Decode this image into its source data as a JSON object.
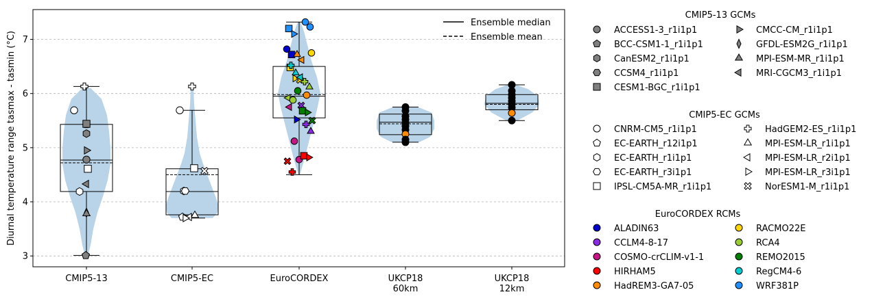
{
  "chart_data": {
    "type": "violin-box-strip",
    "ylabel": "Diurnal temperature range tasmax - tasmin (°C)",
    "ylim": [
      2.8,
      7.55
    ],
    "yticks": [
      3,
      4,
      5,
      6,
      7
    ],
    "grid": "horizontal dashed",
    "categories": [
      "CMIP5-13",
      "CMIP5-EC",
      "EuroCORDEX",
      "UKCP18\n60km",
      "UKCP18\n12km"
    ],
    "ensemble_legend": {
      "placement": "top-right inside plot",
      "median_label": "Ensemble median",
      "mean_label": "Ensemble mean"
    },
    "groups": [
      {
        "name": "CMIP5-13",
        "box": {
          "q1": 4.19,
          "median": 4.77,
          "q3": 5.43,
          "whisker_low": 3.01,
          "whisker_high": 6.13,
          "mean": 4.72
        },
        "points": [
          {
            "model": "ACCESS1-3_r1i1p1",
            "marker": "circle",
            "y": 4.78
          },
          {
            "model": "BCC-CSM1-1_r1i1p1",
            "marker": "pentagon",
            "y": 3.01
          },
          {
            "model": "CanESM2_r1i1p1",
            "marker": "hexagon",
            "y": 5.26
          },
          {
            "model": "CCSM4_r1i1p1",
            "marker": "hexagon2",
            "y": 5.43
          },
          {
            "model": "CESM1-BGC_r1i1p1",
            "marker": "square",
            "y": 5.44
          },
          {
            "model": "CMCC-CM_r1i1p1",
            "marker": "triangle-right",
            "y": 4.95
          },
          {
            "model": "GFDL-ESM2G_r1i1p1",
            "marker": "thin-diamond",
            "y": 3.8
          },
          {
            "model": "MPI-ESM-MR_r1i1p1",
            "marker": "triangle-up",
            "y": 3.78
          },
          {
            "model": "MRI-CGCM3_r1i1p1",
            "marker": "triangle-left",
            "y": 4.33
          },
          {
            "model": "CNRM-CM5_r1i1p1",
            "marker": "circle",
            "y": 5.69,
            "hollow": true
          },
          {
            "model": "IPSL-CM5A-MR_r1i1p1",
            "marker": "square",
            "y": 4.61,
            "hollow": true
          },
          {
            "model": "EC-EARTH_r1i1p1",
            "marker": "hexagon",
            "y": 4.19,
            "hollow": true
          },
          {
            "model": "HadGEM2-ES_r1i1p1",
            "marker": "plus",
            "y": 6.13,
            "hollow": true
          }
        ]
      },
      {
        "name": "CMIP5-EC",
        "box": {
          "q1": 3.76,
          "median": 4.19,
          "q3": 4.61,
          "whisker_low": 3.7,
          "whisker_high": 5.69,
          "mean": 4.5
        },
        "points": [
          {
            "model": "CNRM-CM5_r1i1p1",
            "marker": "circle",
            "y": 5.69
          },
          {
            "model": "EC-EARTH_r12i1p1",
            "marker": "pentagon",
            "y": 3.72
          },
          {
            "model": "EC-EARTH_r1i1p1",
            "marker": "hexagon",
            "y": 4.2
          },
          {
            "model": "EC-EARTH_r3i1p1",
            "marker": "hexagon2",
            "y": 4.2
          },
          {
            "model": "IPSL-CM5A-MR_r1i1p1",
            "marker": "square",
            "y": 4.62
          },
          {
            "model": "HadGEM2-ES_r1i1p1",
            "marker": "plus",
            "y": 6.13
          },
          {
            "model": "MPI-ESM-LR_r1i1p1",
            "marker": "triangle-up",
            "y": 3.75
          },
          {
            "model": "MPI-ESM-LR_r2i1p1",
            "marker": "triangle-left",
            "y": 3.72
          },
          {
            "model": "MPI-ESM-LR_r3i1p1",
            "marker": "triangle-right",
            "y": 3.7
          },
          {
            "model": "NorESM1-M_r1i1p1",
            "marker": "x",
            "y": 4.57
          }
        ]
      },
      {
        "name": "EuroCORDEX",
        "box": {
          "q1": 5.55,
          "median": 5.95,
          "q3": 6.5,
          "whisker_low": 4.5,
          "whisker_high": 7.32,
          "mean": 5.98
        },
        "points": [
          {
            "rcm": "ALADIN63",
            "y": 6.82
          },
          {
            "rcm": "ALADIN63",
            "y": 6.72
          },
          {
            "rcm": "ALADIN63",
            "y": 5.52
          },
          {
            "rcm": "CCLM4-8-17",
            "y": 5.78
          },
          {
            "rcm": "CCLM4-8-17",
            "y": 5.43
          },
          {
            "rcm": "CCLM4-8-17",
            "y": 5.3
          },
          {
            "rcm": "COSMO-crCLIM-v1-1",
            "y": 5.75
          },
          {
            "rcm": "COSMO-crCLIM-v1-1",
            "y": 5.12
          },
          {
            "rcm": "COSMO-crCLIM-v1-1",
            "y": 4.78
          },
          {
            "rcm": "HIRHAM5",
            "y": 4.85
          },
          {
            "rcm": "HIRHAM5",
            "y": 4.82
          },
          {
            "rcm": "HIRHAM5",
            "y": 4.75
          },
          {
            "rcm": "HIRHAM5",
            "y": 4.55
          },
          {
            "rcm": "HadREM3-GA7-05",
            "y": 6.72
          },
          {
            "rcm": "HadREM3-GA7-05",
            "y": 6.62
          },
          {
            "rcm": "HadREM3-GA7-05",
            "y": 5.97
          },
          {
            "rcm": "RACMO22E",
            "y": 6.75
          },
          {
            "rcm": "RACMO22E",
            "y": 6.48
          },
          {
            "rcm": "RACMO22E",
            "y": 6.28
          },
          {
            "rcm": "RACMO22E",
            "y": 6.25
          },
          {
            "rcm": "RCA4",
            "y": 6.22
          },
          {
            "rcm": "RCA4",
            "y": 6.12
          },
          {
            "rcm": "RCA4",
            "y": 5.92
          },
          {
            "rcm": "RCA4",
            "y": 5.88
          },
          {
            "rcm": "REMO2015",
            "y": 6.05
          },
          {
            "rcm": "REMO2015",
            "y": 5.68
          },
          {
            "rcm": "REMO2015",
            "y": 5.65
          },
          {
            "rcm": "REMO2015",
            "y": 5.5
          },
          {
            "rcm": "RegCM4-6",
            "y": 6.52
          },
          {
            "rcm": "RegCM4-6",
            "y": 6.38
          },
          {
            "rcm": "RegCM4-6",
            "y": 6.3
          },
          {
            "rcm": "WRF381P",
            "y": 7.32
          },
          {
            "rcm": "WRF381P",
            "y": 7.23
          },
          {
            "rcm": "WRF381P",
            "y": 7.2
          },
          {
            "rcm": "WRF381P",
            "y": 7.1
          }
        ]
      },
      {
        "name": "UKCP18 60km",
        "box": {
          "q1": 5.24,
          "median": 5.47,
          "q3": 5.62,
          "whisker_low": 5.1,
          "whisker_high": 5.75,
          "mean": 5.44
        },
        "points": [
          5.75,
          5.68,
          5.58,
          5.52,
          5.46,
          5.4,
          5.33,
          5.25,
          5.15,
          5.1
        ]
      },
      {
        "name": "UKCP18 12km",
        "box": {
          "q1": 5.7,
          "median": 5.82,
          "q3": 5.98,
          "whisker_low": 5.5,
          "whisker_high": 6.16,
          "mean": 5.8
        },
        "points": [
          6.16,
          6.05,
          5.98,
          5.92,
          5.86,
          5.8,
          5.74,
          5.64,
          5.5
        ]
      }
    ],
    "legends": [
      {
        "title": "CMIP5-13 GCMs",
        "entries": [
          {
            "label": "ACCESS1-3_r1i1p1",
            "marker": "circle"
          },
          {
            "label": "BCC-CSM1-1_r1i1p1",
            "marker": "pentagon"
          },
          {
            "label": "CanESM2_r1i1p1",
            "marker": "hexagon"
          },
          {
            "label": "CCSM4_r1i1p1",
            "marker": "hexagon2"
          },
          {
            "label": "CESM1-BGC_r1i1p1",
            "marker": "square"
          },
          {
            "label": "CMCC-CM_r1i1p1",
            "marker": "triangle-right"
          },
          {
            "label": "GFDL-ESM2G_r1i1p1",
            "marker": "thin-diamond"
          },
          {
            "label": "MPI-ESM-MR_r1i1p1",
            "marker": "triangle-up"
          },
          {
            "label": "MRI-CGCM3_r1i1p1",
            "marker": "triangle-left"
          }
        ]
      },
      {
        "title": "CMIP5-EC GCMs",
        "entries": [
          {
            "label": "CNRM-CM5_r1i1p1",
            "marker": "circle"
          },
          {
            "label": "EC-EARTH_r12i1p1",
            "marker": "pentagon"
          },
          {
            "label": "EC-EARTH_r1i1p1",
            "marker": "hexagon"
          },
          {
            "label": "EC-EARTH_r3i1p1",
            "marker": "hexagon2"
          },
          {
            "label": "IPSL-CM5A-MR_r1i1p1",
            "marker": "square"
          },
          {
            "label": "HadGEM2-ES_r1i1p1",
            "marker": "plus"
          },
          {
            "label": "MPI-ESM-LR_r1i1p1",
            "marker": "triangle-up"
          },
          {
            "label": "MPI-ESM-LR_r2i1p1",
            "marker": "triangle-left"
          },
          {
            "label": "MPI-ESM-LR_r3i1p1",
            "marker": "triangle-right"
          },
          {
            "label": "NorESM1-M_r1i1p1",
            "marker": "x"
          }
        ]
      },
      {
        "title": "EuroCORDEX RCMs",
        "entries": [
          {
            "label": "ALADIN63",
            "color": "#0000cd"
          },
          {
            "label": "CCLM4-8-17",
            "color": "#8a2be2"
          },
          {
            "label": "COSMO-crCLIM-v1-1",
            "color": "#c71585"
          },
          {
            "label": "HIRHAM5",
            "color": "#ff0000"
          },
          {
            "label": "HadREM3-GA7-05",
            "color": "#ff8c00"
          },
          {
            "label": "RACMO22E",
            "color": "#ffd700"
          },
          {
            "label": "RCA4",
            "color": "#9acd32"
          },
          {
            "label": "REMO2015",
            "color": "#008000"
          },
          {
            "label": "RegCM4-6",
            "color": "#00ced1"
          },
          {
            "label": "WRF381P",
            "color": "#1e90ff"
          }
        ]
      }
    ],
    "colors": {
      "violin": "#b9d3e8",
      "gcm_fill": "#808080",
      "ukcp_12km_orange": "#ff8c00",
      "ukcp_60km_orange": "#ff8c00"
    }
  }
}
